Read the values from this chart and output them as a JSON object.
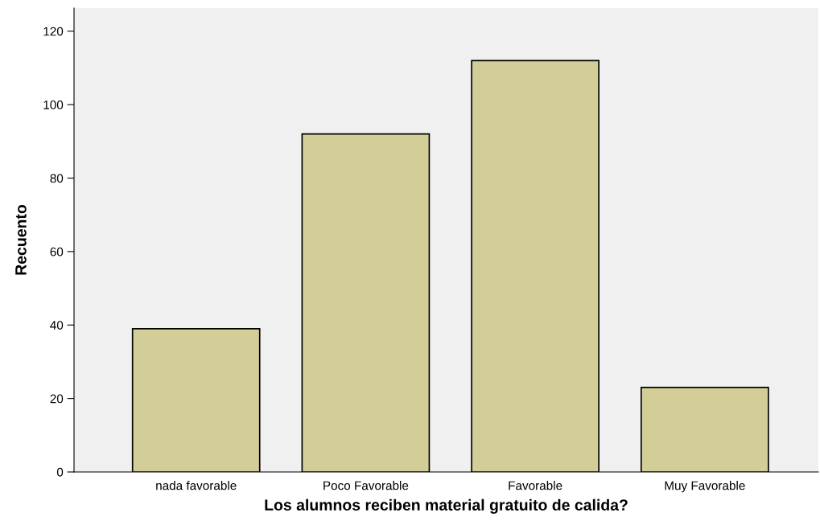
{
  "chart_data": {
    "type": "bar",
    "xlabel": "Los alumnos reciben material gratuito de calida?",
    "ylabel": "Recuento",
    "categories": [
      "nada favorable",
      "Poco Favorable",
      "Favorable",
      "Muy Favorable"
    ],
    "values": [
      39,
      92,
      112,
      23
    ],
    "color": "#d3ce98",
    "ylim": [
      0,
      126.3
    ],
    "yticks": [
      0,
      20,
      40,
      60,
      80,
      100,
      120
    ],
    "grid": false,
    "legend": false
  }
}
